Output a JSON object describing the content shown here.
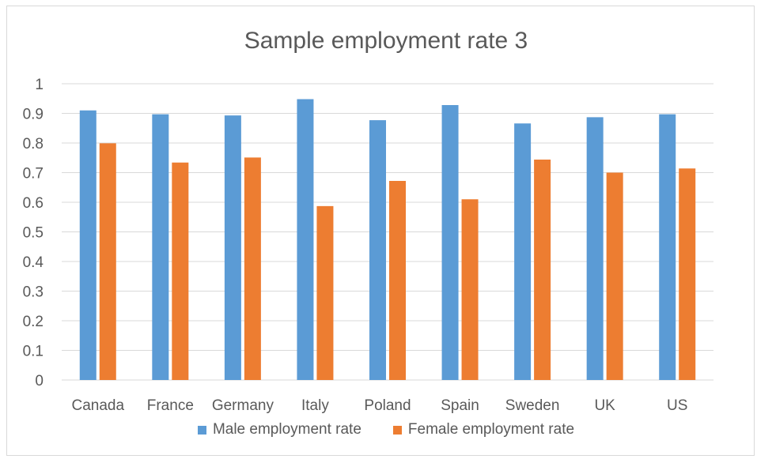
{
  "colors": {
    "male": "#5b9bd5",
    "female": "#ed7d31",
    "grid": "#d9d9d9",
    "text": "#595959"
  },
  "chart_data": {
    "type": "bar",
    "title": "Sample employment rate 3",
    "xlabel": "",
    "ylabel": "",
    "ylim": [
      0,
      1
    ],
    "yticks": [
      "0",
      "0.1",
      "0.2",
      "0.3",
      "0.4",
      "0.5",
      "0.6",
      "0.7",
      "0.8",
      "0.9",
      "1"
    ],
    "grid": true,
    "legend_position": "bottom",
    "categories": [
      "Canada",
      "France",
      "Germany",
      "Italy",
      "Poland",
      "Spain",
      "Sweden",
      "UK",
      "US"
    ],
    "series": [
      {
        "name": "Male employment rate",
        "values": [
          0.91,
          0.897,
          0.893,
          0.948,
          0.877,
          0.928,
          0.866,
          0.887,
          0.897
        ]
      },
      {
        "name": "Female employment rate",
        "values": [
          0.799,
          0.734,
          0.751,
          0.587,
          0.672,
          0.61,
          0.744,
          0.7,
          0.714
        ]
      }
    ]
  }
}
